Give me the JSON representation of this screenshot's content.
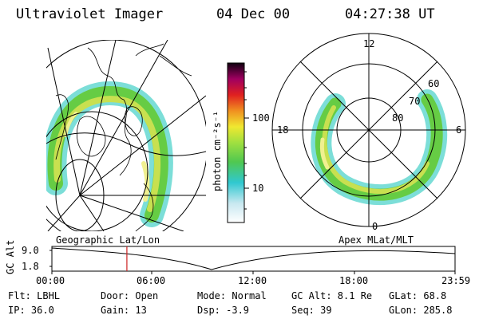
{
  "header": {
    "instrument": "Ultraviolet Imager",
    "date": "04 Dec 00",
    "time": "04:27:38 UT"
  },
  "colorbar": {
    "unit_label": "photon cm⁻²s⁻¹",
    "ticks": [
      "100",
      "10"
    ]
  },
  "polar_plot": {
    "mlt_labels": [
      "12",
      "18",
      "6",
      "0"
    ],
    "lat_labels": [
      "60",
      "70",
      "80"
    ]
  },
  "timeline": {
    "left_title": "Geographic Lat/Lon",
    "right_title": "Apex MLat/MLT",
    "y_axis_label": "GC Alt",
    "y_ticks": [
      "9.0",
      "1.8"
    ],
    "x_ticks": [
      "00:00",
      "06:00",
      "12:00",
      "18:00",
      "23:59"
    ],
    "marker_time_fraction": 0.186
  },
  "params": {
    "flt": "Flt: LBHL",
    "ip": "IP: 36.0",
    "door": "Door: Open",
    "gain": "Gain: 13",
    "mode": "Mode: Normal",
    "dsp": "Dsp:   -3.9",
    "gc_alt": "GC Alt: 8.1 Re",
    "seq": "Seq: 39",
    "glat": "GLat:  68.8",
    "glon": "GLon: 285.8"
  },
  "colors": {
    "marker": "#cc2222",
    "aurora_outer": "#44d0c8",
    "aurora_mid": "#66cc44",
    "aurora_core": "#c8e050",
    "aurora_peak": "#f0f090"
  }
}
